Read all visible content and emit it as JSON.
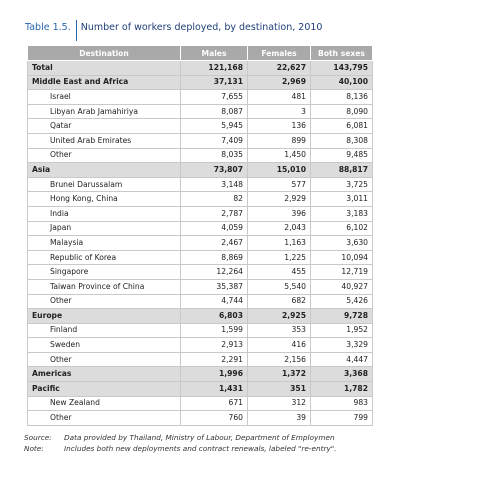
{
  "title": {
    "number": "Table 1.5.",
    "text": "Number of workers deployed, by destination, 2010"
  },
  "table": {
    "header": [
      "Destination",
      "Males",
      "Females",
      "Both sexes"
    ],
    "rows": [
      {
        "cells": [
          "Total",
          "121,168",
          "22,627",
          "143,795"
        ],
        "bold": true
      },
      {
        "cells": [
          "Middle East and Africa",
          "37,131",
          "2,969",
          "40,100"
        ],
        "bold": true
      },
      {
        "cells": [
          "Israel",
          "7,655",
          "481",
          "8,136"
        ]
      },
      {
        "cells": [
          "Libyan Arab Jamahiriya",
          "8,087",
          "3",
          "8,090"
        ]
      },
      {
        "cells": [
          "Qatar",
          "5,945",
          "136",
          "6,081"
        ]
      },
      {
        "cells": [
          "United Arab Emirates",
          "7,409",
          "899",
          "8,308"
        ]
      },
      {
        "cells": [
          "Other",
          "8,035",
          "1,450",
          "9,485"
        ]
      },
      {
        "cells": [
          "Asia",
          "73,807",
          "15,010",
          "88,817"
        ],
        "bold": true
      },
      {
        "cells": [
          "Brunei Darussalam",
          "3,148",
          "577",
          "3,725"
        ]
      },
      {
        "cells": [
          "Hong Kong, China",
          "82",
          "2,929",
          "3,011"
        ]
      },
      {
        "cells": [
          "India",
          "2,787",
          "396",
          "3,183"
        ]
      },
      {
        "cells": [
          "Japan",
          "4,059",
          "2,043",
          "6,102"
        ]
      },
      {
        "cells": [
          "Malaysia",
          "2,467",
          "1,163",
          "3,630"
        ]
      },
      {
        "cells": [
          "Republic of Korea",
          "8,869",
          "1,225",
          "10,094"
        ]
      },
      {
        "cells": [
          "Singapore",
          "12,264",
          "455",
          "12,719"
        ]
      },
      {
        "cells": [
          "Taiwan Province of China",
          "35,387",
          "5,540",
          "40,927"
        ]
      },
      {
        "cells": [
          "Other",
          "4,744",
          "682",
          "5,426"
        ]
      },
      {
        "cells": [
          "Europe",
          "6,803",
          "2,925",
          "9,728"
        ],
        "bold": true
      },
      {
        "cells": [
          "Finland",
          "1,599",
          "353",
          "1,952"
        ]
      },
      {
        "cells": [
          "Sweden",
          "2,913",
          "416",
          "3,329"
        ]
      },
      {
        "cells": [
          "Other",
          "2,291",
          "2,156",
          "4,447"
        ]
      },
      {
        "cells": [
          "Americas",
          "1,996",
          "1,372",
          "3,368"
        ],
        "bold": true
      },
      {
        "cells": [
          "Pacific",
          "1,431",
          "351",
          "1,782"
        ],
        "bold": true
      },
      {
        "cells": [
          "New Zealand",
          "671",
          "312",
          "983"
        ]
      },
      {
        "cells": [
          "Other",
          "760",
          "39",
          "799"
        ]
      }
    ]
  },
  "notes": [
    {
      "label": "Source:",
      "text": "Data provided by Thailand, Ministry of Labour, Department of Employmen"
    },
    {
      "label": "Note:",
      "text": "Includes both new deployments and contract renewals, labeled \"re-entry\"."
    }
  ]
}
